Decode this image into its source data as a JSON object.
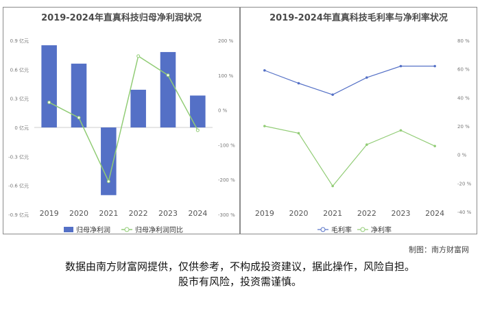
{
  "chart_data": [
    {
      "type": "bar",
      "title": "2019-2024年直真科技归母净利润状况",
      "categories": [
        "2019",
        "2020",
        "2021",
        "2022",
        "2023",
        "2024"
      ],
      "series": [
        {
          "name": "归母净利润",
          "type": "bar",
          "axis": "left",
          "color": "#5470c6",
          "values": [
            0.85,
            0.66,
            -0.7,
            0.39,
            0.78,
            0.33
          ]
        },
        {
          "name": "归母净利润同比",
          "type": "line",
          "axis": "right",
          "color": "#91cc75",
          "values": [
            22,
            -22,
            -205,
            155,
            100,
            -58
          ]
        }
      ],
      "y_left": {
        "ticks": [
          "0.9 亿元",
          "0.6 亿元",
          "0.3 亿元",
          "0 亿元",
          "-0.3 亿元",
          "-0.6 亿元",
          "-0.9 亿元"
        ],
        "ylim": [
          -0.9,
          0.9
        ]
      },
      "y_right": {
        "ticks": [
          "200 %",
          "100 %",
          "0 %",
          "-100 %",
          "-200 %",
          "-300 %"
        ],
        "ylim": [
          -300,
          200
        ]
      },
      "legend": "bottom"
    },
    {
      "type": "line",
      "title": "2019-2024年直真科技毛利率与净利率状况",
      "categories": [
        "2019",
        "2020",
        "2021",
        "2022",
        "2023",
        "2024"
      ],
      "series": [
        {
          "name": "毛利率",
          "color": "#5470c6",
          "values": [
            59,
            50,
            42,
            54,
            62,
            62
          ]
        },
        {
          "name": "净利率",
          "color": "#91cc75",
          "values": [
            20,
            15,
            -22,
            7,
            17,
            6
          ]
        }
      ],
      "y_right": {
        "ticks": [
          "80 %",
          "60 %",
          "40 %",
          "20 %",
          "0 %",
          "-20 %",
          "-40 %"
        ],
        "ylim": [
          -40,
          80
        ]
      },
      "legend": "bottom"
    }
  ],
  "credit": "制图：南方财富网",
  "disclaimer": {
    "line1": "数据由南方财富网提供，仅供参考，不构成投资建议，据此操作，风险自担。",
    "line2": "股市有风险，投资需谨慎。"
  }
}
